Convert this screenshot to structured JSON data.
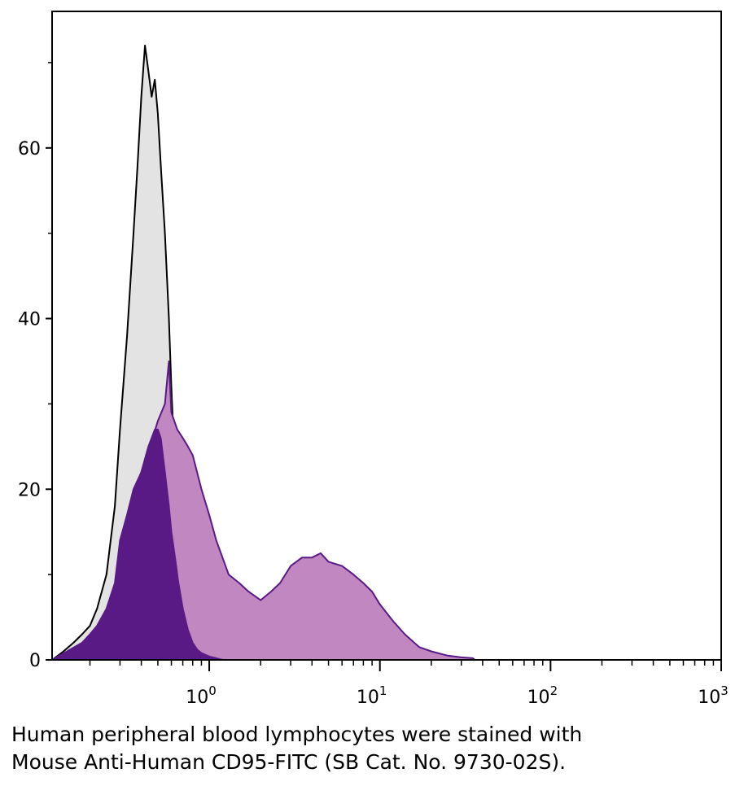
{
  "caption": {
    "line1": "Human peripheral blood lymphocytes were stained with",
    "line2": "Mouse Anti-Human CD95-FITC (SB Cat. No. 9730-02S)."
  },
  "chart_data": {
    "type": "area",
    "x_scale": "log",
    "xlim": [
      0.12,
      1000
    ],
    "ylim": [
      0,
      76
    ],
    "x_ticks": [
      {
        "value": 1,
        "base": "10",
        "exp": "0"
      },
      {
        "value": 10,
        "base": "10",
        "exp": "1"
      },
      {
        "value": 100,
        "base": "10",
        "exp": "2"
      },
      {
        "value": 1000,
        "base": "10",
        "exp": "3"
      }
    ],
    "y_ticks": [
      {
        "value": 0,
        "label": "0"
      },
      {
        "value": 20,
        "label": "20"
      },
      {
        "value": 40,
        "label": "40"
      },
      {
        "value": 60,
        "label": "60"
      }
    ],
    "series": [
      {
        "role": "isotype control",
        "fill": "#e3e3e3",
        "stroke": "#000000",
        "x": [
          0.12,
          0.14,
          0.16,
          0.18,
          0.2,
          0.22,
          0.25,
          0.28,
          0.3,
          0.33,
          0.36,
          0.38,
          0.4,
          0.42,
          0.44,
          0.46,
          0.48,
          0.5,
          0.52,
          0.55,
          0.58,
          0.6,
          0.63,
          0.66,
          0.7,
          0.75,
          0.8,
          0.85,
          0.9,
          1.0,
          1.2
        ],
        "y": [
          0,
          1,
          2,
          3,
          4,
          6,
          10,
          18,
          27,
          38,
          50,
          58,
          66,
          72,
          69,
          66,
          68,
          64,
          58,
          50,
          40,
          32,
          22,
          14,
          8,
          4,
          2,
          1,
          0.5,
          0.3,
          0
        ]
      },
      {
        "role": "CD95-FITC stained",
        "fill": "#c087c0",
        "stroke": "#5a1a86",
        "x": [
          0.12,
          0.18,
          0.25,
          0.3,
          0.35,
          0.4,
          0.45,
          0.5,
          0.55,
          0.58,
          0.6,
          0.65,
          0.7,
          0.75,
          0.8,
          0.9,
          1.0,
          1.1,
          1.3,
          1.5,
          1.7,
          2.0,
          2.3,
          2.6,
          3.0,
          3.5,
          4.0,
          4.5,
          5.0,
          6.0,
          7.0,
          8.0,
          9.0,
          10,
          12,
          14,
          17,
          20,
          25,
          30,
          35,
          36
        ],
        "y": [
          0,
          2,
          5,
          10,
          17,
          22,
          25,
          28,
          30,
          35,
          29,
          27,
          26,
          25,
          24,
          20,
          17,
          14,
          10,
          9,
          8,
          7,
          8,
          9,
          11,
          12,
          12,
          12.5,
          11.5,
          11,
          10,
          9,
          8,
          6.5,
          4.5,
          3,
          1.5,
          1,
          0.5,
          0.3,
          0.2,
          0
        ]
      },
      {
        "role": "overlap",
        "fill": "#5a1a86",
        "stroke": "#5a1a86",
        "x": [
          0.12,
          0.18,
          0.2,
          0.22,
          0.25,
          0.28,
          0.3,
          0.33,
          0.36,
          0.4,
          0.44,
          0.48,
          0.5,
          0.52,
          0.55,
          0.58,
          0.6,
          0.63,
          0.66,
          0.7,
          0.75,
          0.8,
          0.85,
          0.9,
          1.0,
          1.2
        ],
        "y": [
          0,
          2,
          3,
          4,
          6,
          9,
          14,
          17,
          20,
          22,
          25,
          27,
          27,
          26,
          22,
          18,
          15,
          12,
          9,
          6,
          3.5,
          2,
          1.2,
          0.8,
          0.4,
          0
        ]
      }
    ]
  }
}
